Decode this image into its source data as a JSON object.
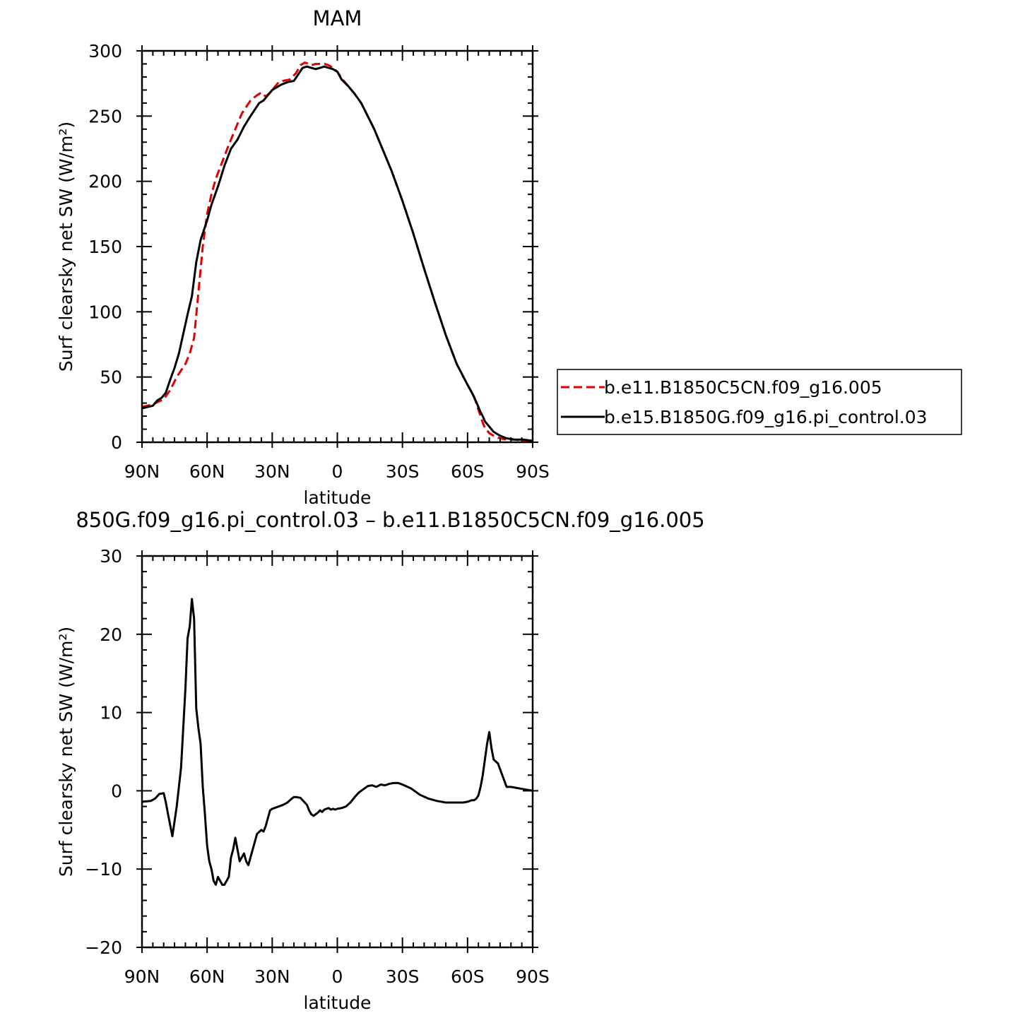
{
  "chart_data": [
    {
      "type": "line",
      "title": "MAM",
      "xlabel": "latitude",
      "ylabel": "Surf clearsky net SW (W/m²)",
      "xlim": [
        -90,
        90
      ],
      "ylim": [
        0,
        300
      ],
      "xticks": [
        -90,
        -60,
        -30,
        0,
        30,
        60,
        90
      ],
      "xtick_labels": [
        "90N",
        "60N",
        "30N",
        "0",
        "30S",
        "60S",
        "90S"
      ],
      "yticks": [
        0,
        50,
        100,
        150,
        200,
        250,
        300
      ],
      "ytick_labels": [
        "0",
        "50",
        "100",
        "150",
        "200",
        "250",
        "300"
      ],
      "grid": false,
      "legend_position": "right",
      "series": [
        {
          "name": "b.e11.B1850C5CN.f09_g16.005",
          "color": "#e00000",
          "style": "dashed",
          "x": [
            -90,
            -85,
            -80,
            -77,
            -74,
            -70,
            -68,
            -66,
            -64,
            -62,
            -60,
            -58,
            -56,
            -53,
            -50,
            -47,
            -44,
            -40,
            -37,
            -35,
            -33,
            -31,
            -29,
            -27,
            -25,
            -22,
            -19,
            -17,
            -15,
            -13,
            -12,
            -10,
            -8,
            -6,
            -4,
            -2,
            0,
            2,
            5,
            8,
            11,
            14,
            17,
            20,
            25,
            30,
            35,
            40,
            45,
            50,
            55,
            60,
            63,
            65,
            66,
            67,
            68,
            70,
            72,
            75,
            78,
            82,
            86,
            90
          ],
          "y": [
            27,
            29,
            33,
            40,
            50,
            60,
            68,
            80,
            115,
            150,
            175,
            190,
            202,
            215,
            228,
            240,
            252,
            262,
            266,
            268,
            265,
            268,
            272,
            276,
            277,
            278,
            283,
            289,
            291,
            290,
            289,
            290,
            290,
            290,
            289,
            287,
            284,
            279,
            273,
            267,
            260,
            250,
            240,
            228,
            208,
            185,
            160,
            133,
            107,
            82,
            60,
            44,
            35,
            25,
            20,
            15,
            11,
            7,
            5,
            3,
            2,
            2,
            1,
            1
          ]
        },
        {
          "name": "b.e15.B1850G.f09_g16.pi_control.03",
          "color": "#000000",
          "style": "solid",
          "x": [
            -90,
            -85,
            -83,
            -81,
            -79,
            -77,
            -75,
            -73,
            -71,
            -69,
            -67,
            -65,
            -63,
            -62,
            -60,
            -58,
            -55,
            -52,
            -49,
            -46,
            -43,
            -40,
            -38,
            -36,
            -34,
            -32,
            -30,
            -28,
            -26,
            -23,
            -20,
            -18,
            -16,
            -14,
            -12,
            -10,
            -8,
            -6,
            -4,
            -2,
            0,
            2,
            5,
            8,
            11,
            14,
            17,
            20,
            25,
            30,
            35,
            40,
            45,
            50,
            55,
            60,
            62,
            64,
            65,
            66,
            67,
            68,
            70,
            72,
            75,
            78,
            82,
            86,
            90
          ],
          "y": [
            26,
            28,
            32,
            34,
            38,
            48,
            57,
            68,
            83,
            98,
            112,
            138,
            155,
            160,
            170,
            182,
            196,
            212,
            225,
            232,
            242,
            250,
            255,
            260,
            262,
            266,
            270,
            272,
            274,
            276,
            277,
            282,
            287,
            288,
            287,
            286,
            287,
            288,
            287,
            286,
            284,
            278,
            273,
            267,
            260,
            250,
            240,
            228,
            208,
            185,
            160,
            133,
            107,
            82,
            60,
            44,
            38,
            31,
            27,
            23,
            20,
            16,
            12,
            8,
            5,
            3,
            2,
            2,
            1
          ]
        }
      ]
    },
    {
      "type": "line",
      "title": "850G.f09_g16.pi_control.03 – b.e11.B1850C5CN.f09_g16.005",
      "xlabel": "latitude",
      "ylabel": "Surf clearsky net SW (W/m²)",
      "xlim": [
        -90,
        90
      ],
      "ylim": [
        -20,
        30
      ],
      "xticks": [
        -90,
        -60,
        -30,
        0,
        30,
        60,
        90
      ],
      "xtick_labels": [
        "90N",
        "60N",
        "30N",
        "0",
        "30S",
        "60S",
        "90S"
      ],
      "yticks": [
        -20,
        -10,
        0,
        10,
        20,
        30
      ],
      "ytick_labels": [
        "−20",
        "−10",
        "0",
        "10",
        "20",
        "30"
      ],
      "grid": false,
      "series": [
        {
          "color": "#000000",
          "style": "solid",
          "x": [
            -90,
            -86,
            -84,
            -82,
            -80,
            -79,
            -78,
            -76,
            -74,
            -72,
            -71,
            -70,
            -69,
            -68,
            -67,
            -66,
            -65,
            -64,
            -63,
            -62,
            -61,
            -60,
            -59,
            -58,
            -57,
            -56,
            -55,
            -54,
            -53,
            -52,
            -51,
            -50,
            -49,
            -48,
            -47,
            -46,
            -45,
            -44,
            -43,
            -42,
            -41,
            -40,
            -38,
            -37,
            -35,
            -34,
            -33,
            -31,
            -30,
            -29,
            -27,
            -25,
            -23,
            -21,
            -20,
            -19,
            -17,
            -16,
            -15,
            -14,
            -13,
            -12,
            -11,
            -10,
            -9,
            -8,
            -7,
            -6,
            -5,
            -4,
            -3,
            -2,
            -1,
            0,
            2,
            4,
            6,
            8,
            10,
            12,
            14,
            16,
            18,
            20,
            22,
            24,
            26,
            28,
            30,
            34,
            38,
            42,
            46,
            50,
            54,
            56,
            58,
            60,
            61,
            62,
            63,
            64,
            65,
            66,
            67,
            68,
            69,
            70,
            71,
            72,
            74,
            76,
            78,
            80,
            82,
            84,
            86,
            90
          ],
          "y": [
            -1.4,
            -1.3,
            -1.0,
            -0.4,
            -0.3,
            -1.5,
            -3.0,
            -5.8,
            -2.0,
            3.0,
            8.0,
            13.0,
            19.5,
            21.0,
            24.5,
            22.0,
            10.5,
            8.0,
            6.0,
            0.5,
            -3.0,
            -7.0,
            -9.0,
            -10.0,
            -11.5,
            -12.0,
            -11.0,
            -11.5,
            -12.0,
            -12.0,
            -11.5,
            -11.0,
            -8.5,
            -7.5,
            -6.0,
            -7.5,
            -9.0,
            -8.5,
            -8.0,
            -9.0,
            -9.5,
            -8.5,
            -6.5,
            -5.5,
            -5.0,
            -5.2,
            -4.5,
            -2.5,
            -2.3,
            -2.2,
            -2.0,
            -1.8,
            -1.5,
            -1.0,
            -0.8,
            -0.8,
            -0.9,
            -1.2,
            -1.5,
            -1.8,
            -2.5,
            -3.0,
            -3.2,
            -3.0,
            -2.8,
            -2.5,
            -2.7,
            -2.4,
            -2.3,
            -2.2,
            -2.4,
            -2.3,
            -2.4,
            -2.3,
            -2.2,
            -2.0,
            -1.5,
            -0.8,
            -0.2,
            0.2,
            0.6,
            0.7,
            0.5,
            0.8,
            0.7,
            0.9,
            1.0,
            1.0,
            0.8,
            0.3,
            -0.5,
            -1.0,
            -1.3,
            -1.5,
            -1.5,
            -1.5,
            -1.5,
            -1.4,
            -1.3,
            -1.2,
            -1.2,
            -1.0,
            -0.6,
            0.5,
            2.0,
            4.0,
            6.0,
            7.5,
            5.5,
            4.0,
            3.5,
            2.0,
            0.5,
            0.5,
            0.4,
            0.3,
            0.2,
            0.0
          ]
        }
      ]
    }
  ]
}
